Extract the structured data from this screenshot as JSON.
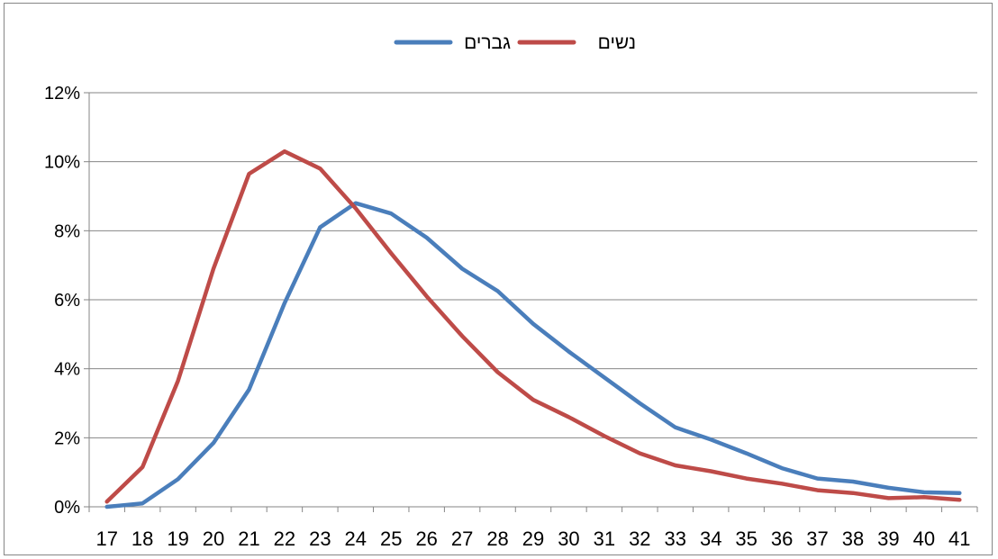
{
  "chart_data": {
    "type": "line",
    "title": "",
    "xlabel": "",
    "ylabel": "",
    "categories": [
      "17",
      "18",
      "19",
      "20",
      "21",
      "22",
      "23",
      "24",
      "25",
      "26",
      "27",
      "28",
      "29",
      "30",
      "31",
      "32",
      "33",
      "34",
      "35",
      "36",
      "37",
      "38",
      "39",
      "40",
      "41"
    ],
    "ylim": [
      0,
      12
    ],
    "yticks": [
      "0%",
      "2%",
      "4%",
      "6%",
      "8%",
      "10%",
      "12%"
    ],
    "grid": true,
    "legend_position": "top",
    "series": [
      {
        "name": "גברים",
        "color": "#4a7ebb",
        "values": [
          0.0,
          0.1,
          0.8,
          1.85,
          3.4,
          5.9,
          8.1,
          8.8,
          8.5,
          7.8,
          6.9,
          6.25,
          5.3,
          4.5,
          3.75,
          3.0,
          2.3,
          1.95,
          1.55,
          1.12,
          0.82,
          0.73,
          0.55,
          0.42,
          0.4
        ]
      },
      {
        "name": "נשים",
        "color": "#be4b48",
        "values": [
          0.15,
          1.15,
          3.65,
          6.9,
          9.65,
          10.3,
          9.8,
          8.65,
          7.35,
          6.1,
          4.95,
          3.9,
          3.1,
          2.6,
          2.05,
          1.55,
          1.2,
          1.03,
          0.82,
          0.67,
          0.48,
          0.4,
          0.25,
          0.28,
          0.2
        ]
      }
    ]
  }
}
